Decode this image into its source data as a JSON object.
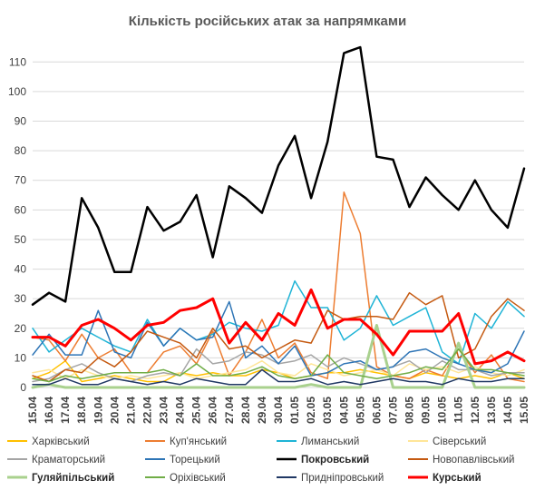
{
  "chart_data": {
    "type": "line",
    "title": "Кількість російських атак за напрямками",
    "xlabel": "",
    "ylabel": "",
    "ylim": [
      0,
      115
    ],
    "yticks": [
      0,
      10,
      20,
      30,
      40,
      50,
      60,
      70,
      80,
      90,
      100,
      110
    ],
    "grid": true,
    "legend_position": "bottom",
    "categories": [
      "15.04",
      "16.04",
      "17.04",
      "18.04",
      "19.04",
      "20.04",
      "21.04",
      "22.04",
      "23.04",
      "24.04",
      "25.04",
      "26.04",
      "27.04",
      "28.04",
      "29.04",
      "30.04",
      "01.05",
      "02.05",
      "03.05",
      "04.05",
      "05.05",
      "06.05",
      "07.05",
      "08.05",
      "09.05",
      "10.05",
      "11.05",
      "12.05",
      "13.05",
      "14.05",
      "15.05"
    ],
    "series": [
      {
        "name": "Харківський",
        "color": "#ffc000",
        "width": 1.5,
        "values": [
          3,
          5,
          9,
          2,
          3,
          4,
          3,
          2,
          2,
          5,
          4,
          5,
          4,
          4,
          6,
          5,
          3,
          4,
          5,
          5,
          6,
          5,
          4,
          3,
          5,
          4,
          3,
          4,
          3,
          5,
          3
        ]
      },
      {
        "name": "Куп'янський",
        "color": "#ed7d31",
        "width": 1.5,
        "values": [
          17,
          16,
          9,
          18,
          10,
          13,
          5,
          5,
          12,
          14,
          8,
          19,
          4,
          12,
          23,
          10,
          15,
          5,
          3,
          66,
          52,
          7,
          4,
          3,
          6,
          4,
          13,
          5,
          11,
          3,
          2
        ]
      },
      {
        "name": "Лиманський",
        "color": "#1fb4d6",
        "width": 1.5,
        "values": [
          20,
          12,
          16,
          20,
          17,
          14,
          12,
          23,
          14,
          20,
          16,
          18,
          22,
          20,
          19,
          21,
          36,
          27,
          27,
          16,
          20,
          31,
          21,
          24,
          27,
          12,
          8,
          25,
          20,
          29,
          24
        ]
      },
      {
        "name": "Сіверський",
        "color": "#ffe699",
        "width": 1.5,
        "values": [
          5,
          6,
          3,
          6,
          4,
          3,
          4,
          3,
          4,
          5,
          3,
          4,
          5,
          6,
          9,
          5,
          4,
          8,
          6,
          4,
          5,
          6,
          4,
          8,
          6,
          7,
          5,
          7,
          5,
          4,
          6
        ]
      },
      {
        "name": "Краматорський",
        "color": "#a5a5a5",
        "width": 1.5,
        "values": [
          2,
          3,
          6,
          8,
          5,
          3,
          2,
          4,
          5,
          4,
          13,
          8,
          9,
          12,
          11,
          8,
          9,
          11,
          7,
          10,
          8,
          6,
          7,
          9,
          5,
          9,
          6,
          6,
          4,
          5,
          5
        ]
      },
      {
        "name": "Торецький",
        "color": "#2e75b6",
        "width": 1.5,
        "values": [
          11,
          18,
          11,
          11,
          26,
          12,
          10,
          22,
          14,
          20,
          16,
          17,
          29,
          10,
          14,
          8,
          14,
          4,
          5,
          8,
          9,
          6,
          7,
          12,
          13,
          10,
          8,
          6,
          5,
          8,
          19
        ]
      },
      {
        "name": "Покровський",
        "color": "#000000",
        "width": 2.5,
        "values": [
          28,
          32,
          29,
          64,
          54,
          39,
          39,
          61,
          53,
          56,
          65,
          44,
          68,
          64,
          59,
          75,
          85,
          64,
          83,
          113,
          115,
          78,
          77,
          61,
          71,
          65,
          60,
          70,
          60,
          54,
          74
        ]
      },
      {
        "name": "Новопавлівський",
        "color": "#c55a11",
        "width": 1.5,
        "values": [
          4,
          2,
          6,
          5,
          10,
          7,
          12,
          19,
          17,
          15,
          10,
          20,
          13,
          14,
          10,
          13,
          16,
          15,
          26,
          23,
          24,
          24,
          23,
          32,
          28,
          31,
          10,
          13,
          24,
          30,
          26
        ]
      },
      {
        "name": "Гуляйпільський",
        "color": "#a9d18e",
        "width": 3,
        "values": [
          0,
          1,
          0,
          0,
          0,
          0,
          0,
          0,
          0,
          0,
          0,
          0,
          0,
          0,
          0,
          0,
          0,
          1,
          0,
          0,
          0,
          21,
          0,
          0,
          0,
          0,
          15,
          0,
          0,
          0,
          0
        ]
      },
      {
        "name": "Оріхівський",
        "color": "#70ad47",
        "width": 1.5,
        "values": [
          3,
          2,
          4,
          3,
          4,
          5,
          5,
          5,
          6,
          4,
          8,
          4,
          4,
          5,
          7,
          4,
          3,
          4,
          11,
          5,
          4,
          3,
          4,
          5,
          7,
          6,
          13,
          6,
          6,
          5,
          4
        ]
      },
      {
        "name": "Придніпровський",
        "color": "#203864",
        "width": 1.5,
        "values": [
          1,
          1,
          3,
          1,
          1,
          3,
          2,
          1,
          2,
          1,
          3,
          2,
          1,
          1,
          6,
          2,
          2,
          3,
          1,
          2,
          1,
          2,
          3,
          2,
          2,
          1,
          3,
          2,
          2,
          3,
          3
        ]
      },
      {
        "name": "Курський",
        "color": "#ff0000",
        "width": 3,
        "values": [
          17,
          17,
          14,
          21,
          23,
          20,
          16,
          21,
          22,
          26,
          27,
          30,
          15,
          22,
          16,
          25,
          21,
          33,
          20,
          23,
          23,
          18,
          11,
          19,
          19,
          19,
          25,
          8,
          9,
          12,
          9
        ]
      }
    ]
  }
}
